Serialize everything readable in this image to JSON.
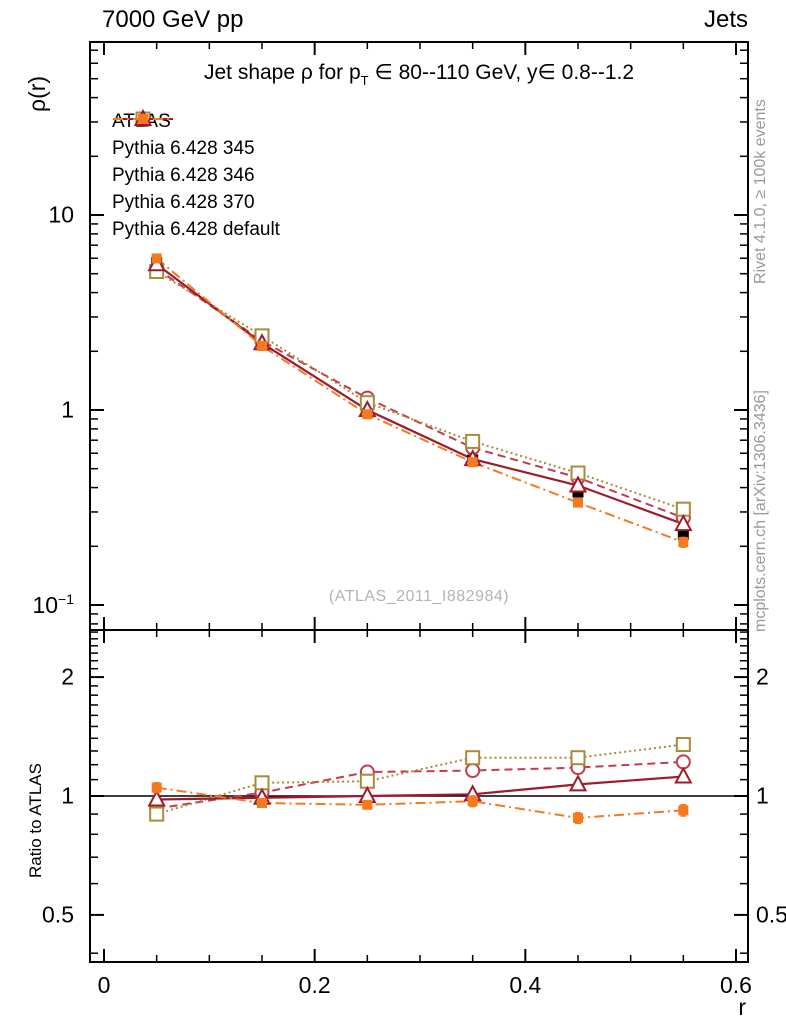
{
  "header": {
    "left": "7000 GeV pp",
    "right": "Jets"
  },
  "side_notes": {
    "top_right": "Rivet 4.1.0, ≥ 100k events",
    "bottom_right": "mcplots.cern.ch [arXiv:1306.3436]"
  },
  "watermark": "(ATLAS_2011_I882984)",
  "title": {
    "pre": "Jet shape ρ for p",
    "sub": "T",
    "post": " ∈ 80--110 GeV, y∈ 0.8--1.2"
  },
  "axes": {
    "x_label": "r",
    "y_main_label": "ρ(r)",
    "y_ratio_label": "Ratio to ATLAS",
    "x_ticks": [
      {
        "v": 0,
        "label": "0"
      },
      {
        "v": 0.2,
        "label": "0.2"
      },
      {
        "v": 0.4,
        "label": "0.4"
      },
      {
        "v": 0.6,
        "label": "0.6"
      }
    ],
    "y_main_ticks": [
      {
        "v": 10,
        "label": "10"
      },
      {
        "v": 1,
        "label": "1"
      },
      {
        "v": 0.1,
        "label": "10",
        "exp": "−1"
      }
    ],
    "y_ratio_ticks": [
      {
        "v": 2,
        "label": "2"
      },
      {
        "v": 1,
        "label": "1"
      },
      {
        "v": 0.5,
        "label": "0.5"
      }
    ]
  },
  "chart_data": {
    "type": "line",
    "xlabel": "r",
    "ylabel": "ρ(r)",
    "ratio_ylabel": "Ratio to ATLAS",
    "x": [
      0.05,
      0.15,
      0.25,
      0.35,
      0.45,
      0.55
    ],
    "x_range": [
      -0.013,
      0.611
    ],
    "main_y_scale": "log",
    "main_y_range": [
      0.075,
      77
    ],
    "ratio_y_scale": "log",
    "ratio_y_range": [
      0.38,
      2.63
    ],
    "legend_position": "top-left-inside",
    "grid": "off",
    "series": [
      {
        "name": "ATLAS",
        "color": "#000000",
        "marker": "square-filled",
        "line": "none",
        "is_reference": true,
        "values": [
          5.7,
          2.22,
          1.0,
          0.554,
          0.38,
          0.23
        ],
        "yerr": [
          0.35,
          0.12,
          0.05,
          0.03,
          0.02,
          0.015
        ]
      },
      {
        "name": "Pythia 6.428 345",
        "color": "#c33b4e",
        "marker": "circle-open",
        "line": "dashed",
        "values": [
          5.3,
          2.26,
          1.15,
          0.64,
          0.45,
          0.28
        ],
        "ratio": [
          0.93,
          1.02,
          1.15,
          1.16,
          1.18,
          1.22
        ],
        "ratio_err": [
          0.015,
          0.012,
          0.015,
          0.015,
          0.018,
          0.02
        ]
      },
      {
        "name": "Pythia 6.428 346",
        "color": "#a98a38",
        "marker": "square-open",
        "line": "dotted",
        "values": [
          5.13,
          2.4,
          1.09,
          0.69,
          0.475,
          0.31
        ],
        "ratio": [
          0.9,
          1.08,
          1.09,
          1.25,
          1.25,
          1.35
        ],
        "ratio_err": [
          0.015,
          0.012,
          0.015,
          0.015,
          0.018,
          0.02
        ]
      },
      {
        "name": "Pythia 6.428 370",
        "color": "#9e1b2c",
        "marker": "triangle-open",
        "line": "solid",
        "values": [
          5.59,
          2.2,
          1.0,
          0.56,
          0.41,
          0.26
        ],
        "ratio": [
          0.98,
          0.99,
          1.0,
          1.01,
          1.07,
          1.12
        ],
        "ratio_err": [
          0.02,
          0.012,
          0.018,
          0.02,
          0.02,
          0.025
        ]
      },
      {
        "name": "Pythia 6.428 default",
        "color": "#f5791e",
        "marker": "square-filled-small",
        "line": "dashdot",
        "values": [
          5.99,
          2.13,
          0.95,
          0.54,
          0.335,
          0.21
        ],
        "yerr": [
          0.3,
          0.1,
          0.04,
          0.025,
          0.015,
          0.012
        ],
        "ratio": [
          1.05,
          0.96,
          0.95,
          0.97,
          0.88,
          0.92
        ],
        "ratio_err": [
          0.03,
          0.02,
          0.02,
          0.03,
          0.027,
          0.03
        ]
      }
    ]
  }
}
